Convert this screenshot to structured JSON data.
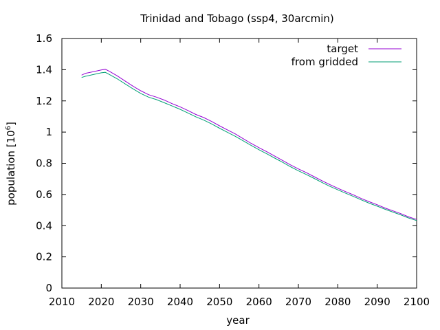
{
  "chart_data": {
    "type": "line",
    "title": "Trinidad and Tobago (ssp4, 30arcmin)",
    "xlabel": "year",
    "ylabel_main": "population [10",
    "ylabel_exp": "6",
    "ylabel_close": "]",
    "xlim": [
      2010,
      2100
    ],
    "ylim": [
      0,
      1.6
    ],
    "xticks": [
      2010,
      2020,
      2030,
      2040,
      2050,
      2060,
      2070,
      2080,
      2090,
      2100
    ],
    "xtick_labels": [
      "2010",
      "2020",
      "2030",
      "2040",
      "2050",
      "2060",
      "2070",
      "2080",
      "2090",
      "2100"
    ],
    "yticks": [
      0,
      0.2,
      0.4,
      0.6,
      0.8,
      1.0,
      1.2,
      1.4,
      1.6
    ],
    "ytick_labels": [
      "0",
      "0.2",
      "0.4",
      "0.6",
      "0.8",
      "1",
      "1.2",
      "1.4",
      "1.6"
    ],
    "grid": false,
    "legend_position": "top-right",
    "x": [
      2015,
      2016,
      2018,
      2020,
      2021,
      2022,
      2024,
      2026,
      2028,
      2030,
      2032,
      2034,
      2036,
      2038,
      2040,
      2042,
      2044,
      2046,
      2048,
      2050,
      2052,
      2054,
      2056,
      2058,
      2060,
      2062,
      2064,
      2066,
      2068,
      2070,
      2072,
      2074,
      2076,
      2078,
      2080,
      2082,
      2084,
      2086,
      2088,
      2090,
      2092,
      2094,
      2096,
      2098,
      2100
    ],
    "series": [
      {
        "name": "target",
        "color": "#9400d3",
        "values": [
          1.365,
          1.377,
          1.387,
          1.398,
          1.403,
          1.39,
          1.361,
          1.328,
          1.295,
          1.265,
          1.24,
          1.224,
          1.205,
          1.182,
          1.162,
          1.138,
          1.113,
          1.093,
          1.068,
          1.04,
          1.014,
          0.988,
          0.958,
          0.928,
          0.9,
          0.874,
          0.846,
          0.818,
          0.79,
          0.764,
          0.74,
          0.714,
          0.688,
          0.663,
          0.64,
          0.618,
          0.597,
          0.574,
          0.553,
          0.534,
          0.513,
          0.495,
          0.477,
          0.456,
          0.44
        ]
      },
      {
        "name": "from gridded",
        "color": "#009e73",
        "values": [
          1.35,
          1.358,
          1.369,
          1.38,
          1.383,
          1.37,
          1.342,
          1.31,
          1.278,
          1.248,
          1.224,
          1.208,
          1.188,
          1.167,
          1.146,
          1.122,
          1.098,
          1.077,
          1.052,
          1.025,
          0.999,
          0.973,
          0.944,
          0.915,
          0.887,
          0.861,
          0.833,
          0.806,
          0.778,
          0.752,
          0.728,
          0.703,
          0.677,
          0.652,
          0.63,
          0.608,
          0.587,
          0.565,
          0.544,
          0.525,
          0.505,
          0.487,
          0.469,
          0.449,
          0.433
        ]
      }
    ]
  }
}
